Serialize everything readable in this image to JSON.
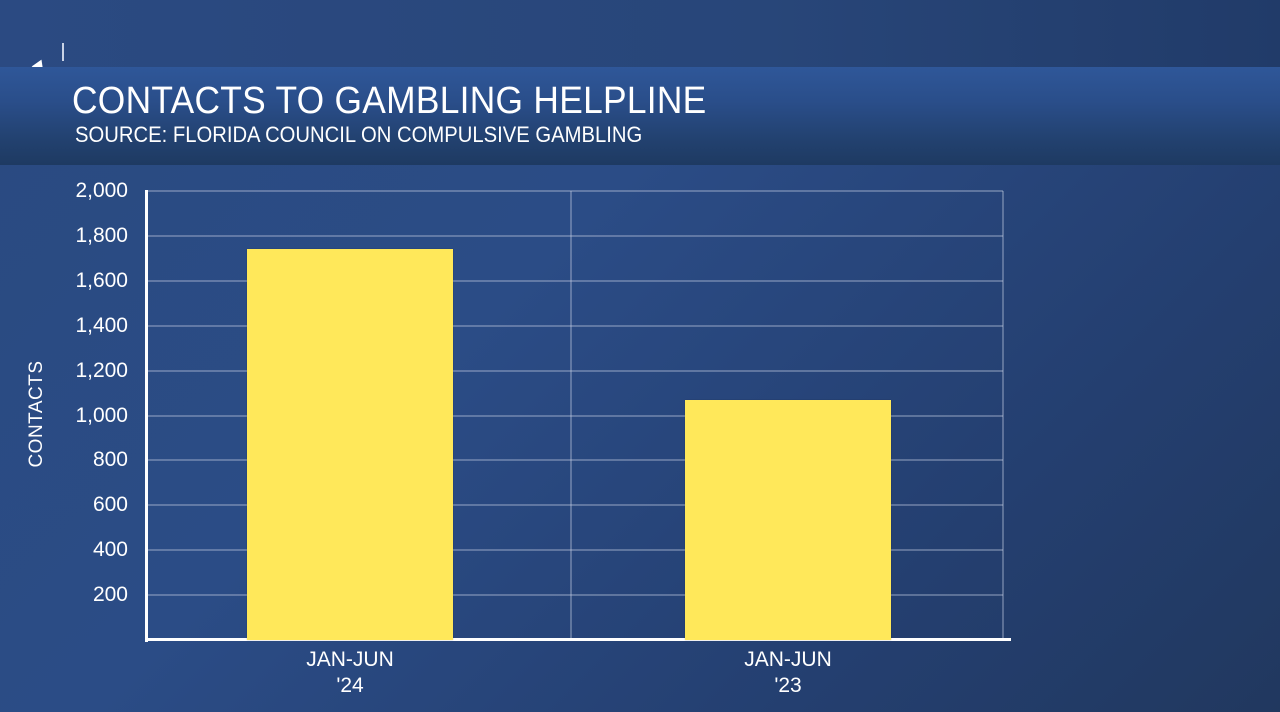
{
  "header": {
    "title": "CONTACTS TO GAMBLING HELPLINE",
    "subtitle": "SOURCE: FLORIDA COUNCIL ON COMPULSIVE GAMBLING"
  },
  "colors": {
    "background": "#2a4a80",
    "bar": "#ffe85a",
    "text": "#ffffff"
  },
  "chart_data": {
    "type": "bar",
    "title": "CONTACTS TO GAMBLING HELPLINE",
    "subtitle": "SOURCE: FLORIDA COUNCIL ON COMPULSIVE GAMBLING",
    "categories": [
      "JAN-JUN '24",
      "JAN-JUN '23"
    ],
    "category_lines": [
      [
        "JAN-JUN",
        "'24"
      ],
      [
        "JAN-JUN",
        "'23"
      ]
    ],
    "values": [
      1740,
      1070
    ],
    "xlabel": "",
    "ylabel": "CONTACTS",
    "ylim": [
      0,
      2000
    ],
    "yticks": [
      200,
      400,
      600,
      800,
      1000,
      1200,
      1400,
      1600,
      1800,
      2000
    ],
    "ytick_labels": [
      "200",
      "400",
      "600",
      "800",
      "1,000",
      "1,200",
      "1,400",
      "1,600",
      "1,800",
      "2,000"
    ],
    "grid": true,
    "legend": null
  }
}
